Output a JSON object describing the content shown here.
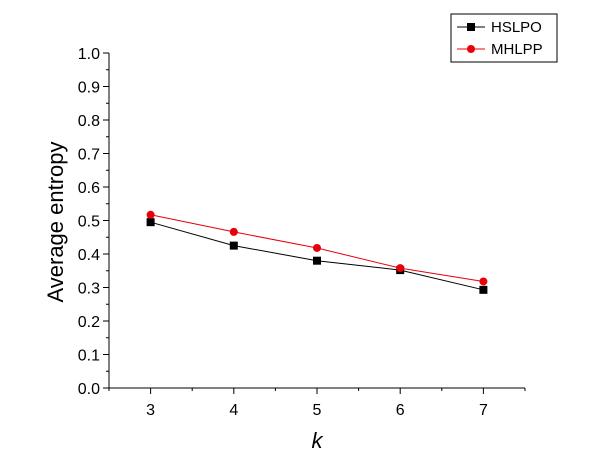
{
  "chart_data": {
    "type": "line",
    "title": "",
    "xlabel": "k",
    "ylabel": "Average entropy",
    "x": [
      3,
      4,
      5,
      6,
      7
    ],
    "x_ticks": [
      "3",
      "4",
      "5",
      "6",
      "7"
    ],
    "xlim": [
      2.5,
      7.5
    ],
    "ylim": [
      0.0,
      1.0
    ],
    "y_ticks": [
      "0.0",
      "0.1",
      "0.2",
      "0.3",
      "0.4",
      "0.5",
      "0.6",
      "0.7",
      "0.8",
      "0.9",
      "1.0"
    ],
    "grid": false,
    "legend_position": "top-right",
    "series": [
      {
        "name": "HSLPO",
        "values": [
          0.495,
          0.425,
          0.38,
          0.352,
          0.293
        ],
        "color": "#000000",
        "marker": "square"
      },
      {
        "name": "MHLPP",
        "values": [
          0.517,
          0.466,
          0.418,
          0.358,
          0.318
        ],
        "color": "#e8000b",
        "marker": "circle"
      }
    ]
  }
}
